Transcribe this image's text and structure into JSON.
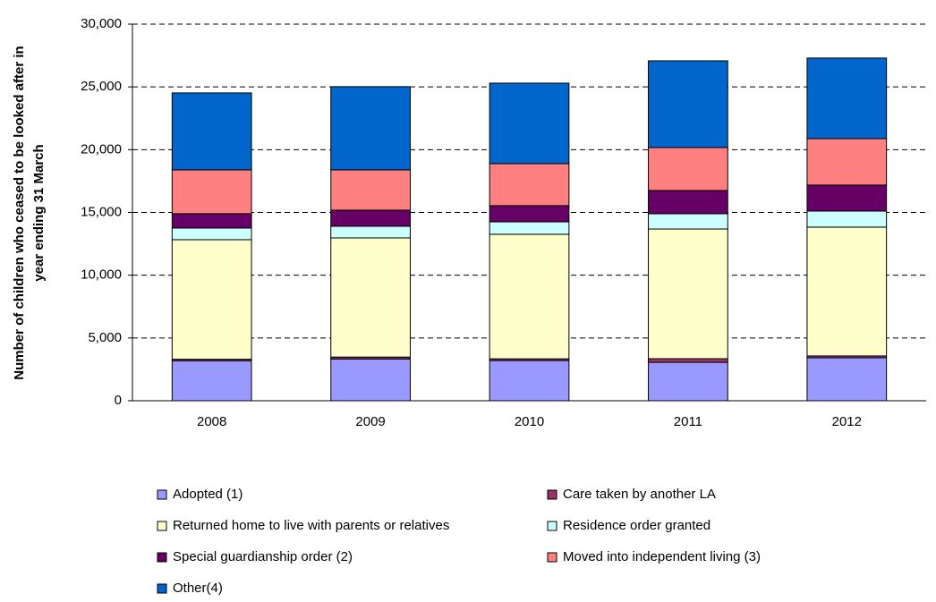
{
  "chart_data": {
    "type": "stacked_bar",
    "y_label": [
      "Number of children who ceased to be looked after in",
      "year ending 31 March"
    ],
    "categories": [
      "2008",
      "2009",
      "2010",
      "2011",
      "2012"
    ],
    "series": [
      {
        "name": "Adopted (1)",
        "color": "#9999ff",
        "values": [
          3180,
          3330,
          3200,
          3060,
          3420
        ]
      },
      {
        "name": "Care taken by another LA",
        "color": "#993366",
        "values": [
          130,
          150,
          140,
          290,
          150
        ]
      },
      {
        "name": "Returned home to live with parents or relatives",
        "color": "#ffffcc",
        "values": [
          9520,
          9490,
          9920,
          10330,
          10260
        ]
      },
      {
        "name": "Residence order granted",
        "color": "#ccffff",
        "values": [
          930,
          930,
          990,
          1220,
          1280
        ]
      },
      {
        "name": "Special guardianship order (2)",
        "color": "#660066",
        "values": [
          1140,
          1280,
          1290,
          1850,
          2070
        ]
      },
      {
        "name": "Moved into independent living (3)",
        "color": "#ff8080",
        "values": [
          3490,
          3210,
          3350,
          3420,
          3700
        ]
      },
      {
        "name": "Other(4)",
        "color": "#0066cc",
        "values": [
          6130,
          6630,
          6410,
          6910,
          6420
        ]
      }
    ],
    "ylim": [
      0,
      30000
    ],
    "yticks": [
      0,
      {
        "value": 5000,
        "label": "5,000"
      },
      {
        "value": 10000,
        "label": "10,000"
      },
      {
        "value": 15000,
        "label": "15,000"
      },
      {
        "value": 20000,
        "label": "20,000"
      },
      {
        "value": 25000,
        "label": "25,000"
      },
      {
        "value": 30000,
        "label": "30,000"
      }
    ],
    "grid": true,
    "legend": "bottom"
  }
}
